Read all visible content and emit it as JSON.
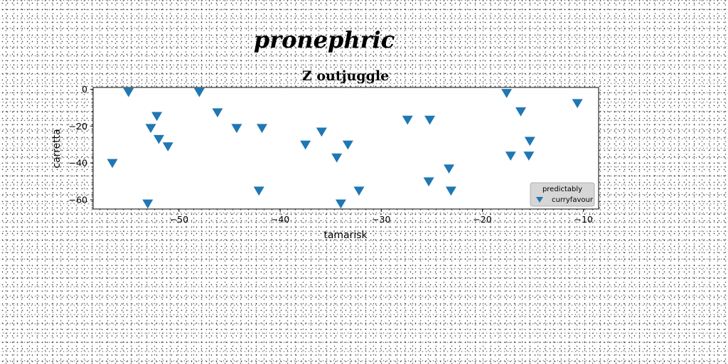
{
  "chart_data": {
    "type": "scatter",
    "suptitle": "pronephric",
    "title": "Z outjuggle",
    "xlabel": "tamarisk",
    "ylabel": "carretta",
    "xlim": [
      -58.5,
      -8.5
    ],
    "ylim": [
      -65,
      1
    ],
    "xticks": [
      -50,
      -40,
      -30,
      -20,
      -10
    ],
    "yticks": [
      0,
      -20,
      -40,
      -60
    ],
    "xtick_labels": [
      "−50",
      "−40",
      "−30",
      "−20",
      "−10"
    ],
    "ytick_labels": [
      "0",
      "−20",
      "−40",
      "−60"
    ],
    "legend": {
      "title": "predictably",
      "placement": "lower-right"
    },
    "series": [
      {
        "name": "curryfavour",
        "color": "#1f77b4",
        "marker": "triangle-down",
        "points": [
          {
            "x": -55.0,
            "y": -1.5
          },
          {
            "x": -48.0,
            "y": -1.5
          },
          {
            "x": -52.2,
            "y": -14.5
          },
          {
            "x": -46.2,
            "y": -12.5
          },
          {
            "x": -52.8,
            "y": -21.0
          },
          {
            "x": -44.3,
            "y": -21.0
          },
          {
            "x": -41.8,
            "y": -21.0
          },
          {
            "x": -52.0,
            "y": -27.0
          },
          {
            "x": -51.1,
            "y": -31.0
          },
          {
            "x": -56.6,
            "y": -40.0
          },
          {
            "x": -53.1,
            "y": -62.0
          },
          {
            "x": -42.1,
            "y": -55.0
          },
          {
            "x": -37.5,
            "y": -30.0
          },
          {
            "x": -35.9,
            "y": -23.0
          },
          {
            "x": -34.4,
            "y": -37.0
          },
          {
            "x": -33.3,
            "y": -30.0
          },
          {
            "x": -34.0,
            "y": -62.0
          },
          {
            "x": -32.2,
            "y": -55.0
          },
          {
            "x": -27.4,
            "y": -16.5
          },
          {
            "x": -25.2,
            "y": -16.5
          },
          {
            "x": -25.3,
            "y": -50.0
          },
          {
            "x": -23.3,
            "y": -43.0
          },
          {
            "x": -23.1,
            "y": -55.0
          },
          {
            "x": -17.6,
            "y": -2.0
          },
          {
            "x": -16.2,
            "y": -12.0
          },
          {
            "x": -17.2,
            "y": -36.0
          },
          {
            "x": -15.3,
            "y": -28.0
          },
          {
            "x": -15.4,
            "y": -36.0
          },
          {
            "x": -10.6,
            "y": -7.5
          }
        ]
      }
    ]
  }
}
